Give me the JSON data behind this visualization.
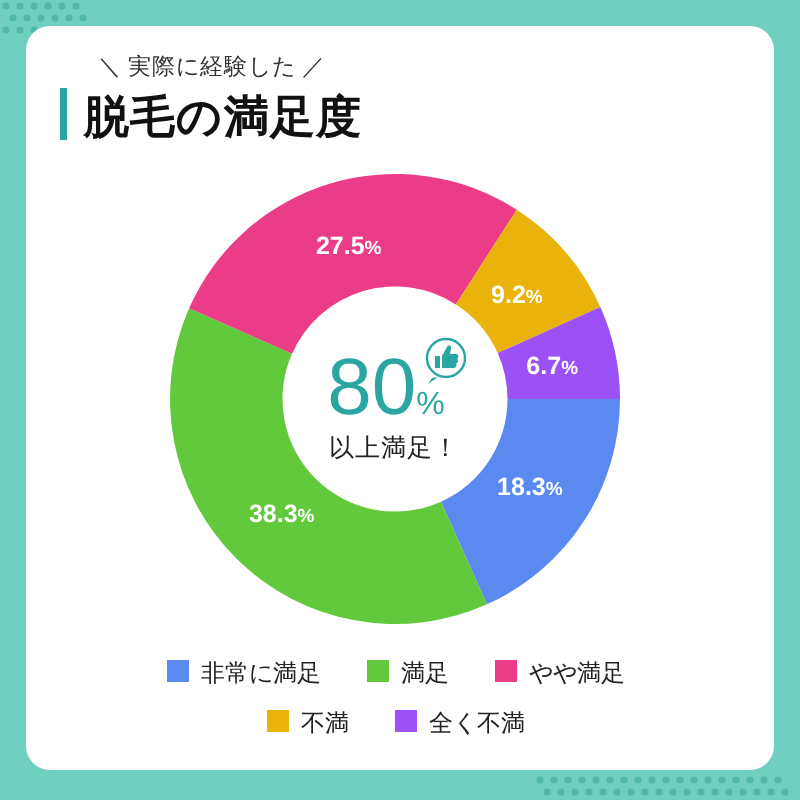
{
  "chart_data": {
    "type": "donut",
    "title": "脱毛の満足度",
    "subtitle": "＼ 実際に経験した ／",
    "categories": [
      "非常に満足",
      "満足",
      "やや満足",
      "不満",
      "全く不満"
    ],
    "values": [
      18.3,
      38.3,
      27.5,
      9.2,
      6.7
    ],
    "colors": [
      "#5a8af0",
      "#63c93c",
      "#eb3d87",
      "#eab30b",
      "#9b51f5"
    ],
    "value_labels": [
      "18.3%",
      "38.3%",
      "27.5%",
      "9.2%",
      "6.7%"
    ],
    "annotations": [
      "80%",
      "以上満足！"
    ],
    "legend": "bottom"
  }
}
